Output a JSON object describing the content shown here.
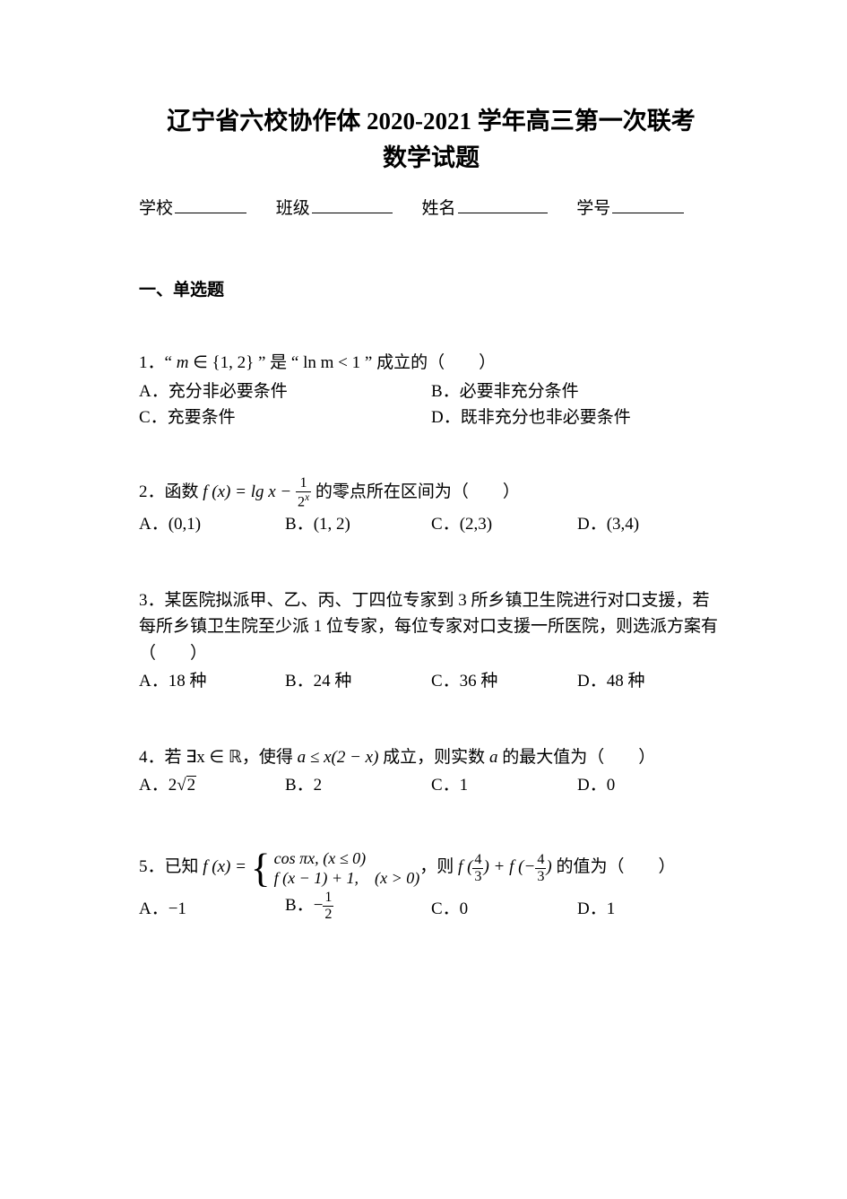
{
  "colors": {
    "text": "#000000",
    "background": "#ffffff",
    "line": "#000000"
  },
  "title_line1": "辽宁省六校协作体 2020-2021 学年高三第一次联考",
  "title_line2": "数学试题",
  "meta": {
    "school_label": "学校",
    "class_label": "班级",
    "name_label": "姓名",
    "id_label": "学号"
  },
  "section1": "一、单选题",
  "q1": {
    "num": "1．",
    "open_q": "“ ",
    "expr1_a": "m",
    "expr1_b": " ∈ {1, 2}",
    "mid": " ” 是 “ ",
    "expr2": "ln m < 1",
    "close_q": " ” 成立的（　　）",
    "A": "A．充分非必要条件",
    "B": "B．必要非充分条件",
    "C": "C．充要条件",
    "D": "D．既非充分也非必要条件"
  },
  "q2": {
    "num": "2．函数 ",
    "fx": "f (x) = lg x − ",
    "frac_num": "1",
    "frac_den": "2",
    "frac_den_sup": "x",
    "tail": " 的零点所在区间为（　　）",
    "A_pre": "A．",
    "A": "(0,1)",
    "B_pre": "B．",
    "B": "(1, 2)",
    "C_pre": "C．",
    "C": "(2,3)",
    "D_pre": "D．",
    "D": "(3,4)"
  },
  "q3": {
    "stem": "3．某医院拟派甲、乙、丙、丁四位专家到 3 所乡镇卫生院进行对口支援，若每所乡镇卫生院至少派 1 位专家，每位专家对口支援一所医院，则选派方案有（　　）",
    "A": "A．18 种",
    "B": "B．24 种",
    "C": "C．36 种",
    "D": "D．48 种"
  },
  "q4": {
    "num": "4．若 ",
    "exists": "∃x ∈ ℝ",
    "mid1": "，使得 ",
    "ineq": "a ≤ x(2 − x)",
    "mid2": " 成立，则实数 ",
    "var": "a",
    "tail": " 的最大值为（　　）",
    "A_pre": "A．",
    "A_coef": "2",
    "A_rad": "2",
    "B": "B．2",
    "C": "C．1",
    "D": "D．0"
  },
  "q5": {
    "num": "5．已知 ",
    "fx_head": "f (x) = ",
    "case1": "cos πx, (x ≤ 0)",
    "case2": "f (x − 1) + 1,　(x > 0)",
    "mid": "，则 ",
    "val_head": "f (",
    "p_num": "4",
    "p_den": "3",
    "val_mid": ") + f (−",
    "n_num": "4",
    "n_den": "3",
    "val_tail": ")",
    "tail": " 的值为（　　）",
    "A": "A．−1",
    "B_pre": "B．",
    "B_sign": "−",
    "B_num": "1",
    "B_den": "2",
    "C": "C．0",
    "D": "D．1"
  }
}
